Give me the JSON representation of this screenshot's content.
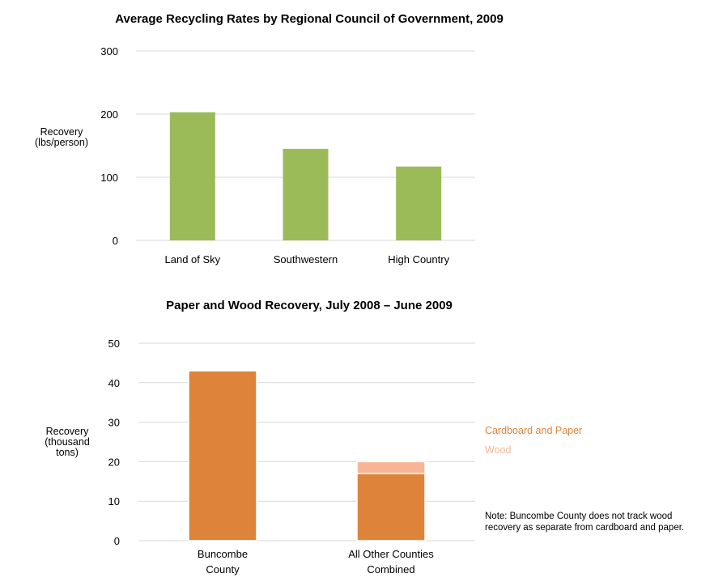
{
  "chart_data": [
    {
      "type": "bar",
      "title": "Average Recycling Rates by Regional Council of Government, 2009",
      "ylabel": [
        "Recovery",
        "(lbs/person)"
      ],
      "xlabel": "",
      "ylim": [
        0,
        300
      ],
      "yticks": [
        "0",
        "100",
        "200",
        "300"
      ],
      "grid": true,
      "categories": [
        [
          "Land of Sky"
        ],
        [
          "Southwestern"
        ],
        [
          "High Country"
        ]
      ],
      "values": [
        203,
        145,
        117
      ],
      "colors": {
        "bar": "#9bbb59"
      }
    },
    {
      "type": "bar",
      "stacked": true,
      "title": "Paper and Wood Recovery, July 2008 – June 2009",
      "ylabel": [
        "Recovery",
        "(thousand",
        "tons)"
      ],
      "xlabel": "",
      "ylim": [
        0,
        50
      ],
      "yticks": [
        "0",
        "10",
        "20",
        "30",
        "40",
        "50"
      ],
      "grid": true,
      "categories": [
        [
          "Buncombe",
          "County"
        ],
        [
          "All Other Counties",
          "Combined"
        ]
      ],
      "series": [
        {
          "name": "Cardboard and Paper",
          "values": [
            43,
            17
          ],
          "color": "#dd843a"
        },
        {
          "name": "Wood",
          "values": [
            0,
            3
          ],
          "color": "#f8b596"
        }
      ],
      "legend_position": "right",
      "note": [
        "Note: Buncombe County does not track wood",
        "recovery as separate from cardboard and paper."
      ]
    }
  ]
}
